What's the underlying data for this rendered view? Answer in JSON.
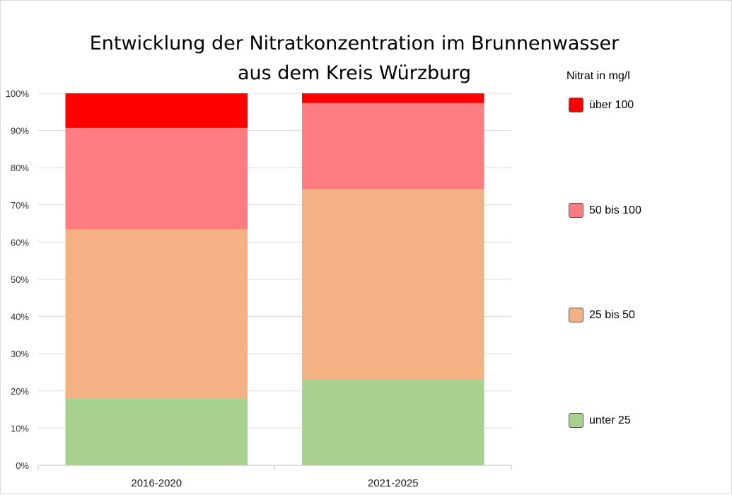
{
  "chart_data": {
    "type": "bar",
    "stacked": true,
    "percent": true,
    "title": "Entwicklung der Nitratkonzentration im Brunnenwasser\naus dem Kreis Würzburg",
    "categories": [
      "2016-2020",
      "2021-2025"
    ],
    "series": [
      {
        "name": "unter 25",
        "color": "#a9d18e",
        "values": [
          18,
          23
        ]
      },
      {
        "name": "25 bis 50",
        "color": "#f4b183",
        "values": [
          45.5,
          51.3
        ]
      },
      {
        "name": "50 bis 100",
        "color": "#ff7c80",
        "values": [
          27.2,
          23.1
        ]
      },
      {
        "name": "über 100",
        "color": "#ff0000",
        "values": [
          9.3,
          2.6
        ]
      }
    ],
    "ylim": [
      0,
      100
    ],
    "yticks": [
      "0%",
      "10%",
      "20%",
      "30%",
      "40%",
      "50%",
      "60%",
      "70%",
      "80%",
      "90%",
      "100%"
    ],
    "grid": true,
    "legend": {
      "title": "Nitrat in mg/l",
      "position": "right"
    }
  }
}
